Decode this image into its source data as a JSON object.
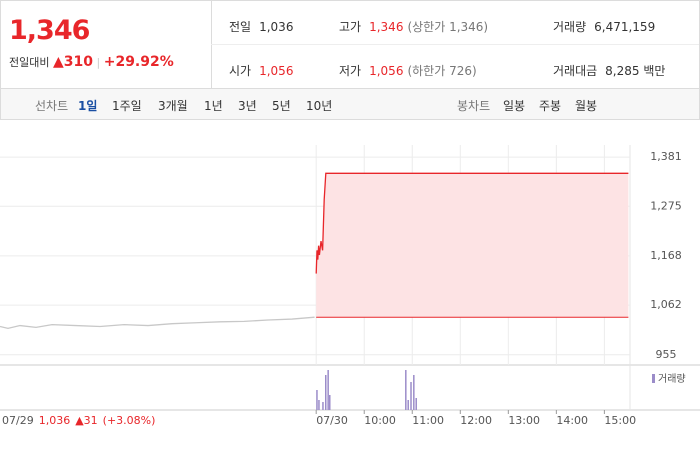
{
  "header": {
    "price": "1,346",
    "change_label": "전일대비",
    "change": "310",
    "change_pct": "+29.92%",
    "stats": [
      [
        {
          "label": "전일",
          "value": "1,036"
        },
        {
          "label": "고가",
          "value": "1,346",
          "note": "(상한가 1,346)"
        },
        {
          "label": "거래량",
          "value": "6,471,159"
        }
      ],
      [
        {
          "label": "시가",
          "value": "1,056"
        },
        {
          "label": "저가",
          "value": "1,056",
          "note": "(하한가 726)"
        },
        {
          "label": "거래대금",
          "value": "8,285 백만"
        }
      ]
    ]
  },
  "tabs": {
    "line_label": "선차트",
    "line": [
      "1일",
      "1주일",
      "3개월",
      "1년",
      "3년",
      "5년",
      "10년"
    ],
    "candle_label": "봉차트",
    "candle": [
      "일봉",
      "주봉",
      "월봉"
    ]
  },
  "chart_data": {
    "type": "line",
    "xlim": [
      -395,
      392
    ],
    "xticks": [
      {
        "value": 0,
        "label": "07/30"
      },
      {
        "value": 60,
        "label": "10:00"
      },
      {
        "value": 120,
        "label": "11:00"
      },
      {
        "value": 180,
        "label": "12:00"
      },
      {
        "value": 240,
        "label": "13:00"
      },
      {
        "value": 300,
        "label": "14:00"
      },
      {
        "value": 360,
        "label": "15:00"
      }
    ],
    "ylim": [
      933,
      1407
    ],
    "yticks": [
      955,
      {
        "value": 1062,
        "label": "1,062"
      },
      {
        "value": 1168,
        "label": "1,168"
      },
      {
        "value": 1275,
        "label": "1,275"
      },
      {
        "value": 1381,
        "label": "1,381"
      }
    ],
    "grid": true,
    "base_value": 1036,
    "series": [
      {
        "color": "#c8c8c8",
        "x": [
          -395,
          -385,
          -370,
          -350,
          -330,
          -300,
          -270,
          -240,
          -210,
          -180,
          -150,
          -120,
          -90,
          -60,
          -30,
          -2
        ],
        "values": [
          1016,
          1012,
          1018,
          1014,
          1020,
          1018,
          1016,
          1020,
          1018,
          1022,
          1024,
          1026,
          1027,
          1030,
          1032,
          1036
        ]
      },
      {
        "color": "#e8262a",
        "fill": "#fde3e4",
        "x": [
          0,
          1,
          2,
          3,
          4,
          6,
          8,
          10,
          12,
          390
        ],
        "values": [
          1130,
          1180,
          1160,
          1190,
          1170,
          1200,
          1180,
          1290,
          1346,
          1346
        ]
      }
    ],
    "volume": {
      "name": "거래량",
      "color": "#9b8cc9",
      "vlim": [
        0,
        300000
      ],
      "x": [
        0,
        2.5,
        7.5,
        11,
        14,
        16,
        111,
        114,
        117.5,
        121,
        124
      ],
      "values": [
        150000,
        75000,
        60000,
        262500,
        300000,
        112500,
        300000,
        75000,
        210000,
        262500,
        90000
      ]
    },
    "info": {
      "date": "07/29",
      "price": "1,036",
      "change": "▲31",
      "pct": "(+3.08%)"
    }
  }
}
